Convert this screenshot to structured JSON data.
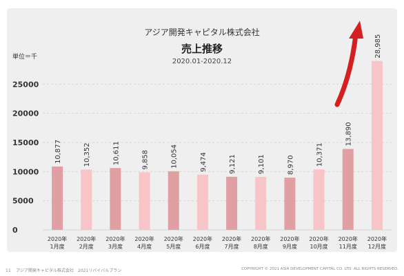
{
  "header": {
    "company": "アジア開発キャピタル株式会社",
    "title": "売上推移",
    "period": "2020.01-2020.12",
    "unit": "単位＝千"
  },
  "footer": {
    "page_number": "11",
    "left_text": "アジア開発キャピタル株式会社　2021リバイバルプラン",
    "copyright": "COPYRIGHT © 2021 ASIA DEVELOPMENT CAPITAL CO. LTD. ALL RIGHTS RESERVED."
  },
  "colors": {
    "dark_bar": "#e0a0a3",
    "light_bar": "#f7c4c8",
    "arrow": "#d42020"
  },
  "chart_data": {
    "type": "bar",
    "categories": [
      "2020年\n1月度",
      "2020年\n2月度",
      "2020年\n3月度",
      "2020年\n4月度",
      "2020年\n5月度",
      "2020年\n6月度",
      "2020年\n7月度",
      "2020年\n8月度",
      "2020年\n9月度",
      "2020年\n10月度",
      "2020年\n11月度",
      "2020年\n12月度"
    ],
    "values": [
      10877,
      10352,
      10611,
      9858,
      10054,
      9474,
      9121,
      9101,
      8970,
      10371,
      13890,
      28985
    ],
    "value_labels": [
      "10,877",
      "10,352",
      "10,611",
      "9,858",
      "10,054",
      "9,474",
      "9,121",
      "9,101",
      "8,970",
      "10,371",
      "13,890",
      "28,985"
    ],
    "yticks": [
      0,
      5000,
      10000,
      15000,
      20000,
      25000
    ],
    "ylim": [
      0,
      30000
    ],
    "grid": true,
    "bar_shades": [
      "dark",
      "light",
      "dark",
      "light",
      "dark",
      "light",
      "dark",
      "light",
      "dark",
      "light",
      "dark",
      "light"
    ],
    "annotation": "upward-trend-arrow"
  }
}
